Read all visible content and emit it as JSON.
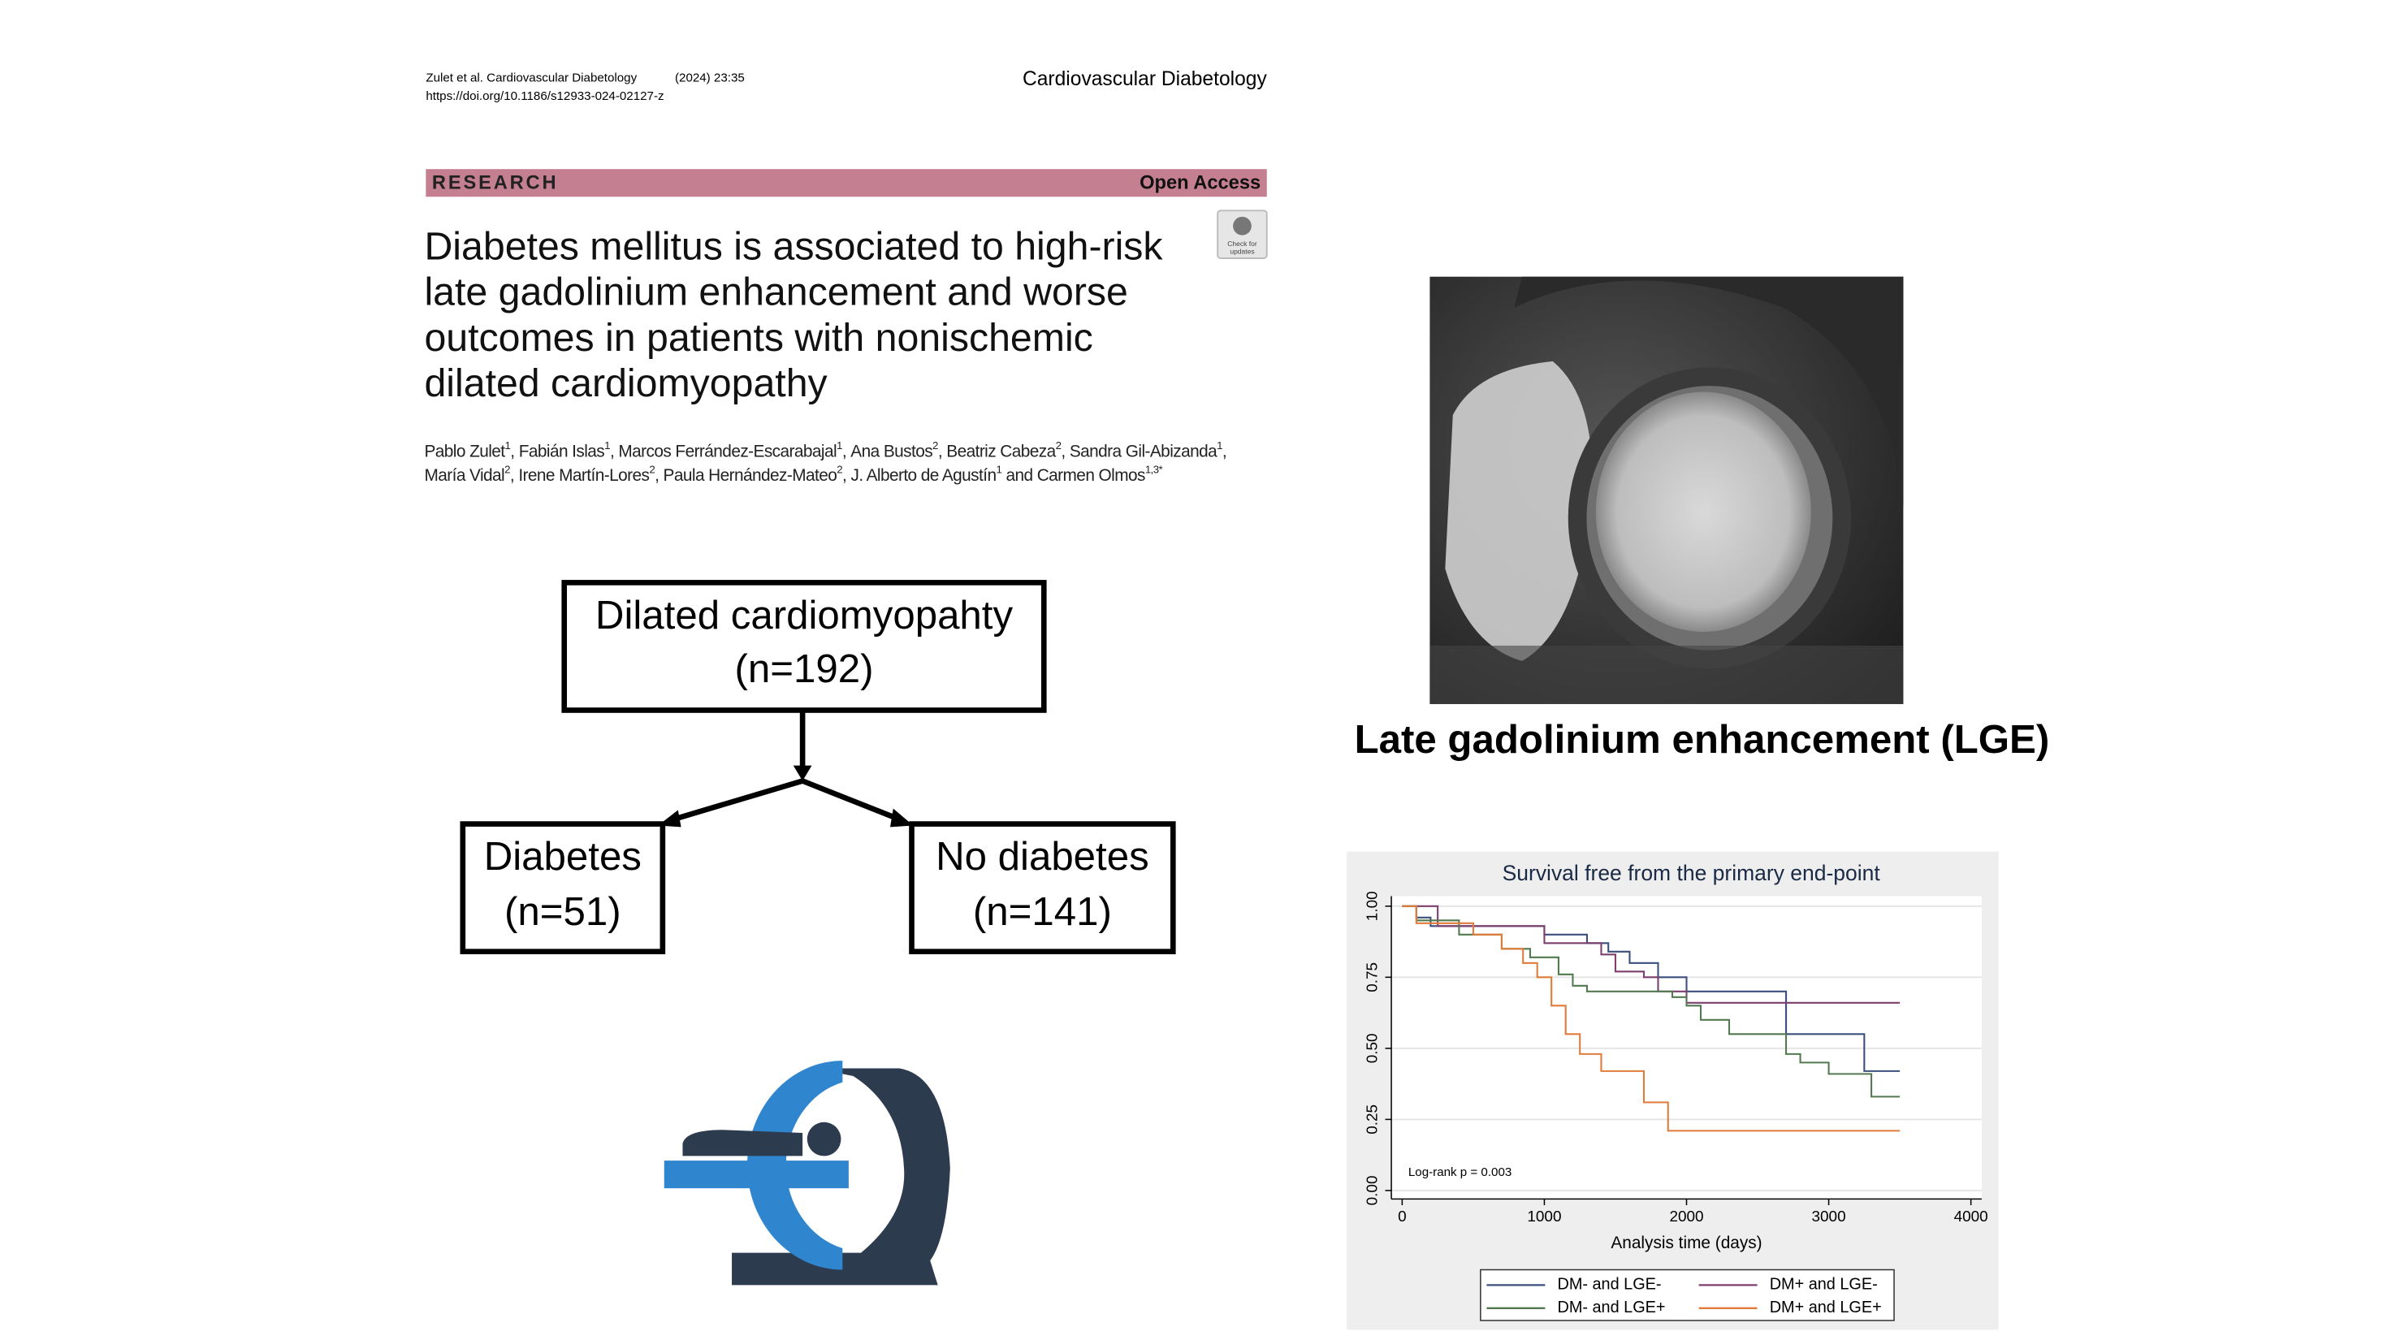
{
  "header": {
    "citation": "Zulet et al. Cardiovascular Diabetology",
    "issue": "(2024) 23:35",
    "doi": "https://doi.org/10.1186/s12933-024-02127-z",
    "journal": "Cardiovascular Diabetology"
  },
  "banner": {
    "label": "RESEARCH",
    "access": "Open Access"
  },
  "check_updates": [
    "Check for",
    "updates"
  ],
  "title": [
    "Diabetes mellitus is associated to high-risk",
    "late gadolinium enhancement and worse",
    "outcomes in patients with nonischemic",
    "dilated cardiomyopathy"
  ],
  "authors": {
    "lines": [
      [
        {
          "name": "Pablo Zulet",
          "sup": "1",
          "after": ", "
        },
        {
          "name": "Fabián Islas",
          "sup": "1",
          "after": ", "
        },
        {
          "name": "Marcos Ferrández-Escarabajal",
          "sup": "1",
          "after": ", "
        },
        {
          "name": "Ana Bustos",
          "sup": "2",
          "after": ", "
        },
        {
          "name": "Beatriz Cabeza",
          "sup": "2",
          "after": ", "
        },
        {
          "name": "Sandra Gil-Abizanda",
          "sup": "1",
          "after": ","
        }
      ],
      [
        {
          "name": "María Vidal",
          "sup": "2",
          "after": ", "
        },
        {
          "name": "Irene Martín-Lores",
          "sup": "2",
          "after": ", "
        },
        {
          "name": "Paula Hernández-Mateo",
          "sup": "2",
          "after": ", "
        },
        {
          "name": "J. Alberto de Agustín",
          "sup": "1",
          "after": " and "
        },
        {
          "name": "Carmen Olmos",
          "sup": "1,3*"
        }
      ]
    ]
  },
  "flowchart": {
    "nodes": [
      {
        "label": "Dilated cardiomyopahty",
        "n": "(n=192)"
      },
      {
        "label": "Diabetes",
        "n": "(n=51)"
      },
      {
        "label": "No diabetes",
        "n": "(n=141)"
      }
    ]
  },
  "image_caption": "Late gadolinium enhancement (LGE)",
  "chart_data": {
    "type": "step",
    "title": "Survival free from the primary end-point",
    "x_label": "Analysis time (days)",
    "annotation": "Log-rank p = 0.003",
    "xlim": [
      -76,
      4076
    ],
    "ylim": [
      -0.03,
      1.035
    ],
    "xticks": [
      0,
      1000,
      2000,
      3000,
      4000
    ],
    "yticks": [
      {
        "value": 0,
        "label": "0.00"
      },
      {
        "value": 0.25,
        "label": "0.25"
      },
      {
        "value": 0.5,
        "label": "0.50"
      },
      {
        "value": 0.75,
        "label": "0.75"
      },
      {
        "value": 1,
        "label": "1.00"
      }
    ],
    "grid": true,
    "legend": "bottom",
    "series": [
      {
        "name": "DM- and LGE-",
        "color": "#3b4f7d",
        "x": [
          0,
          100,
          200,
          1000,
          1300,
          1450,
          1600,
          1800,
          2000,
          2700,
          3250,
          3500
        ],
        "values": [
          1,
          0.96,
          0.93,
          0.9,
          0.87,
          0.84,
          0.8,
          0.75,
          0.7,
          0.55,
          0.42,
          0.42
        ]
      },
      {
        "name": "DM+ and LGE-",
        "color": "#7d3f6e",
        "x": [
          0,
          250,
          1000,
          1400,
          1500,
          1700,
          1800,
          2000,
          3500
        ],
        "values": [
          1,
          0.93,
          0.87,
          0.83,
          0.77,
          0.75,
          0.7,
          0.66,
          0.66
        ]
      },
      {
        "name": "DM- and LGE+",
        "color": "#52794f",
        "x": [
          0,
          100,
          400,
          700,
          900,
          1100,
          1200,
          1300,
          1900,
          2000,
          2100,
          2300,
          2700,
          2800,
          3000,
          3300,
          3500
        ],
        "values": [
          1,
          0.95,
          0.9,
          0.85,
          0.82,
          0.76,
          0.72,
          0.7,
          0.68,
          0.65,
          0.6,
          0.55,
          0.48,
          0.45,
          0.41,
          0.33,
          0.33
        ]
      },
      {
        "name": "DM+ and LGE+",
        "color": "#e07b39",
        "x": [
          0,
          100,
          500,
          700,
          850,
          950,
          1050,
          1150,
          1250,
          1400,
          1700,
          1870,
          3500
        ],
        "values": [
          1,
          0.94,
          0.9,
          0.85,
          0.8,
          0.75,
          0.65,
          0.55,
          0.48,
          0.42,
          0.31,
          0.21,
          0.21
        ]
      }
    ]
  }
}
